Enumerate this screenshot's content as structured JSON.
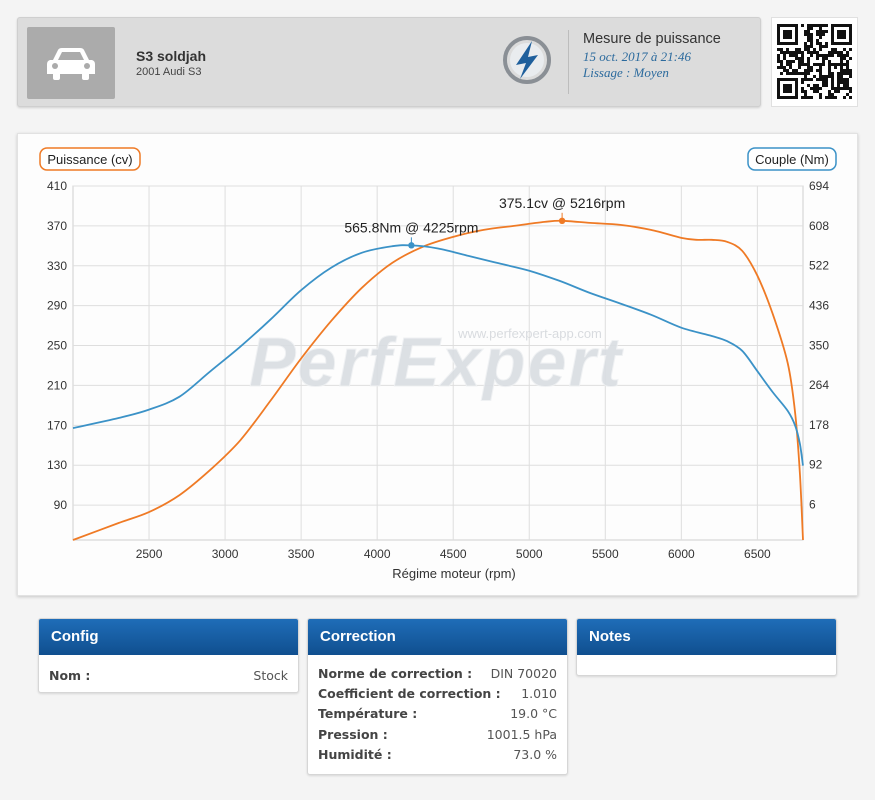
{
  "vehicle": {
    "name": "S3 soldjah",
    "model": "2001 Audi S3"
  },
  "measurement": {
    "title": "Mesure de puissance",
    "date": "15 oct. 2017 à 21:46",
    "smoothing": "Lissage : Moyen"
  },
  "chart_data": {
    "type": "line",
    "watermark": "PerfExpert",
    "watermark_url": "www.perfexpert-app.com",
    "xlabel": "Régime moteur (rpm)",
    "xlim": [
      2000,
      6800
    ],
    "x_ticks": [
      2500,
      3000,
      3500,
      4000,
      4500,
      5000,
      5500,
      6000,
      6500
    ],
    "y_left": {
      "label": "Puissance (cv)",
      "range": [
        55,
        410
      ],
      "ticks": [
        90,
        130,
        170,
        210,
        250,
        290,
        330,
        370,
        410
      ]
    },
    "y_right": {
      "label": "Couple (Nm)",
      "range": [
        -70.6,
        694
      ],
      "ticks": [
        6,
        92,
        178,
        264,
        350,
        436,
        522,
        608,
        694
      ]
    },
    "series": [
      {
        "name": "Puissance (cv)",
        "axis": "left",
        "color": "#ef7a25",
        "x": [
          2000,
          2300,
          2500,
          2700,
          2900,
          3100,
          3300,
          3500,
          3700,
          3900,
          4100,
          4300,
          4500,
          4700,
          4900,
          5100,
          5216,
          5400,
          5600,
          5800,
          6000,
          6100,
          6200,
          6300,
          6400,
          6500,
          6600,
          6700,
          6750,
          6780,
          6800
        ],
        "y": [
          55,
          72,
          83,
          100,
          125,
          155,
          195,
          237,
          275,
          308,
          333,
          349,
          359,
          366,
          370,
          374,
          375.1,
          373,
          371,
          366,
          358,
          356,
          356,
          354,
          345,
          320,
          282,
          232,
          180,
          120,
          55
        ]
      },
      {
        "name": "Couple (Nm)",
        "axis": "right",
        "color": "#3b92c7",
        "x": [
          2000,
          2300,
          2500,
          2700,
          2900,
          3100,
          3300,
          3500,
          3700,
          3900,
          4100,
          4225,
          4400,
          4600,
          4800,
          5000,
          5200,
          5400,
          5600,
          5800,
          6000,
          6200,
          6300,
          6400,
          6500,
          6600,
          6700,
          6750,
          6780,
          6800
        ],
        "y": [
          171,
          193,
          211,
          239,
          293,
          347,
          406,
          469,
          518,
          550,
          564,
          565.8,
          559,
          543,
          527,
          511,
          489,
          463,
          440,
          416,
          388,
          370,
          359,
          338,
          294,
          249,
          208,
          175,
          136,
          90
        ]
      }
    ],
    "annotations": [
      {
        "series": "Puissance (cv)",
        "x": 5216,
        "y": 375.1,
        "label": "375.1cv @ 5216rpm"
      },
      {
        "series": "Couple (Nm)",
        "x": 4225,
        "y": 565.8,
        "label": "565.8Nm @ 4225rpm"
      }
    ]
  },
  "panels": {
    "config": {
      "title": "Config",
      "rows": [
        {
          "label": "Nom :",
          "value": "Stock"
        }
      ]
    },
    "correction": {
      "title": "Correction",
      "rows": [
        {
          "label": "Norme de correction :",
          "value": "DIN 70020"
        },
        {
          "label": "Coefficient de correction :",
          "value": "1.010"
        },
        {
          "label": "Température :",
          "value": "19.0 °C"
        },
        {
          "label": "Pression :",
          "value": "1001.5 hPa"
        },
        {
          "label": "Humidité :",
          "value": "73.0 %"
        }
      ]
    },
    "notes": {
      "title": "Notes",
      "rows": []
    }
  },
  "icons": {
    "vehicle": "car-icon",
    "brand": "perfexpert-logo-icon",
    "qr": "qr-code-icon"
  }
}
